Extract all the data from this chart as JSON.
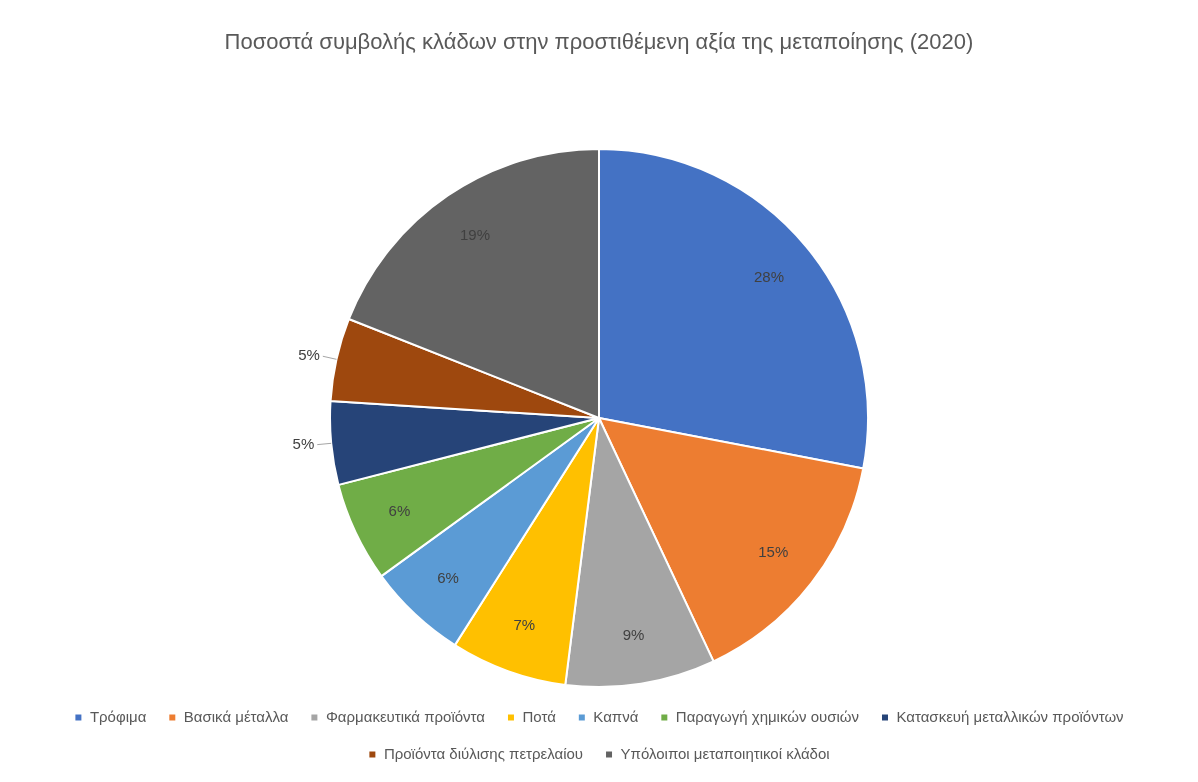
{
  "chart_data": {
    "type": "pie",
    "title": "Ποσοστά συμβολής κλάδων στην προστιθέμενη αξία της μεταποίησης (2020)",
    "categories": [
      "Τρόφιμα",
      "Βασικά μέταλλα",
      "Φαρμακευτικά προϊόντα",
      "Ποτά",
      "Καπνά",
      "Παραγωγή χημικών ουσιών",
      "Κατασκευή μεταλλικών προϊόντων",
      "Προϊόντα διύλισης πετρελαίου",
      "Υπόλοιποι μεταποιητικοί κλάδοι"
    ],
    "values": [
      28,
      15,
      9,
      7,
      6,
      6,
      5,
      5,
      19
    ],
    "colors": [
      "#4472c4",
      "#ed7d31",
      "#a5a5a5",
      "#ffc000",
      "#5b9bd5",
      "#70ad47",
      "#264478",
      "#9e480e",
      "#636363"
    ],
    "value_labels": [
      "28%",
      "15%",
      "9%",
      "7%",
      "6%",
      "6%",
      "5%",
      "5%",
      "19%"
    ],
    "legend": "bottom"
  }
}
